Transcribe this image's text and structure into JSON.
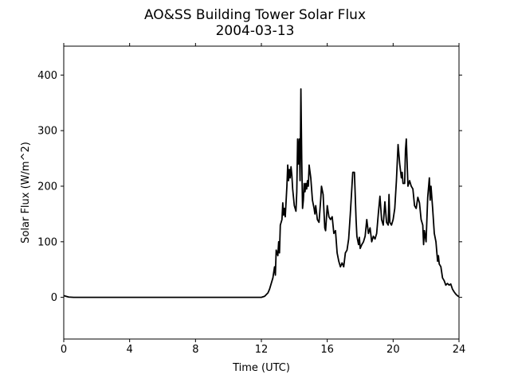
{
  "chart_data": {
    "type": "line",
    "title": "AO&SS Building Tower Solar Flux",
    "subtitle": "2004-03-13",
    "x_label": "Time (UTC)",
    "y_label": "Solar Flux (W/m^2)",
    "xlim": [
      0,
      24
    ],
    "ylim": [
      -75,
      452
    ],
    "xticks": [
      0,
      4,
      8,
      12,
      16,
      20,
      24
    ],
    "yticks": [
      0,
      100,
      200,
      300,
      400
    ],
    "grid": false,
    "series": [
      {
        "color": "#000000",
        "x": [
          0,
          0.3,
          0.6,
          12,
          12.2,
          12.4,
          12.5,
          12.6,
          12.7,
          12.8,
          12.85,
          12.9,
          13.0,
          13.05,
          13.1,
          13.15,
          13.25,
          13.3,
          13.35,
          13.4,
          13.45,
          13.55,
          13.6,
          13.65,
          13.7,
          13.75,
          13.8,
          13.85,
          13.9,
          14.0,
          14.1,
          14.15,
          14.2,
          14.25,
          14.3,
          14.35,
          14.4,
          14.45,
          14.5,
          14.55,
          14.6,
          14.65,
          14.7,
          14.75,
          14.8,
          14.85,
          14.9,
          15.0,
          15.1,
          15.2,
          15.25,
          15.3,
          15.4,
          15.5,
          15.6,
          15.65,
          15.75,
          15.85,
          15.9,
          16.0,
          16.1,
          16.2,
          16.3,
          16.4,
          16.5,
          16.6,
          16.7,
          16.8,
          16.9,
          17.0,
          17.1,
          17.2,
          17.3,
          17.4,
          17.5,
          17.55,
          17.65,
          17.75,
          17.8,
          17.9,
          17.95,
          18.0,
          18.1,
          18.2,
          18.3,
          18.4,
          18.5,
          18.6,
          18.7,
          18.8,
          18.9,
          19.0,
          19.1,
          19.2,
          19.3,
          19.4,
          19.5,
          19.6,
          19.7,
          19.75,
          19.8,
          19.9,
          20.0,
          20.1,
          20.2,
          20.3,
          20.4,
          20.5,
          20.55,
          20.6,
          20.7,
          20.75,
          20.8,
          20.9,
          21.0,
          21.1,
          21.2,
          21.3,
          21.4,
          21.5,
          21.6,
          21.7,
          21.8,
          21.85,
          21.9,
          22.0,
          22.1,
          22.2,
          22.25,
          22.3,
          22.4,
          22.5,
          22.6,
          22.7,
          22.75,
          22.8,
          22.9,
          23.0,
          23.1,
          23.2,
          23.3,
          23.4,
          23.5,
          23.6,
          23.7,
          23.8,
          23.9,
          24.0
        ],
        "values": [
          3,
          0.5,
          0,
          0,
          2,
          8,
          15,
          25,
          35,
          55,
          40,
          85,
          75,
          100,
          80,
          130,
          140,
          170,
          148,
          160,
          145,
          200,
          238,
          210,
          230,
          215,
          235,
          220,
          195,
          165,
          155,
          190,
          285,
          240,
          285,
          210,
          375,
          250,
          160,
          175,
          205,
          190,
          205,
          195,
          210,
          200,
          238,
          215,
          175,
          160,
          150,
          165,
          140,
          135,
          175,
          200,
          185,
          125,
          120,
          165,
          145,
          140,
          145,
          115,
          120,
          80,
          65,
          55,
          62,
          55,
          80,
          85,
          105,
          150,
          200,
          225,
          225,
          140,
          110,
          95,
          108,
          88,
          95,
          100,
          110,
          140,
          115,
          125,
          100,
          110,
          105,
          115,
          150,
          182,
          140,
          130,
          172,
          135,
          130,
          185,
          135,
          130,
          140,
          160,
          210,
          275,
          240,
          215,
          225,
          205,
          205,
          265,
          285,
          200,
          210,
          200,
          195,
          165,
          160,
          180,
          170,
          140,
          130,
          95,
          120,
          100,
          180,
          215,
          175,
          200,
          160,
          115,
          100,
          65,
          75,
          60,
          55,
          35,
          30,
          22,
          25,
          22,
          24,
          15,
          10,
          6,
          3,
          1
        ]
      }
    ]
  }
}
